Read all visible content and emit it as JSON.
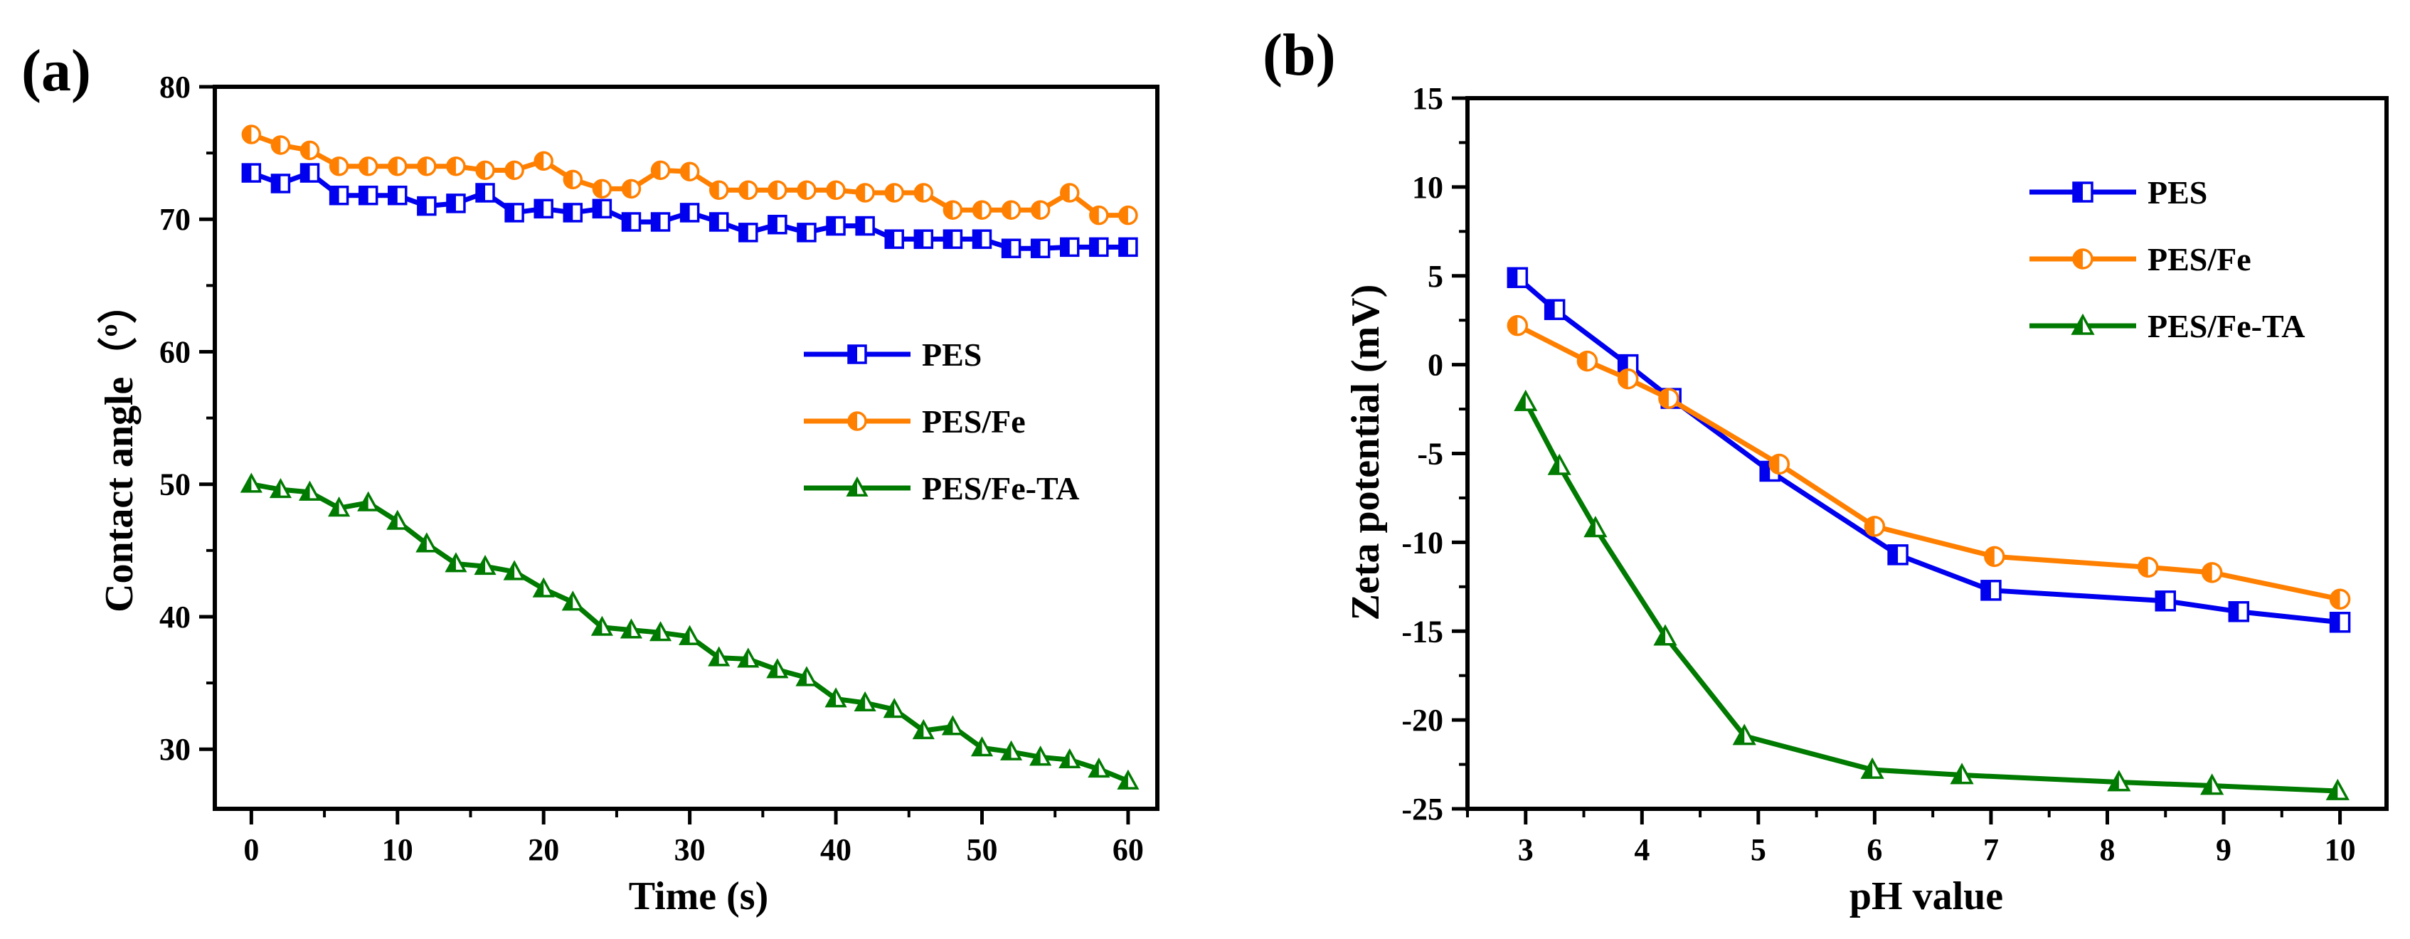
{
  "colors": {
    "PES": "#0000ee",
    "PES/Fe": "#ff8000",
    "PES/Fe-TA": "#007a00"
  },
  "chart_data": [
    {
      "panel": "(a)",
      "type": "line",
      "xlabel": "Time (s)",
      "ylabel": "Contact angle（º）",
      "xlim": [
        -2.5,
        62
      ],
      "ylim": [
        25.5,
        80
      ],
      "xticks": [
        "0",
        "10",
        "20",
        "30",
        "40",
        "50",
        "60"
      ],
      "yticks": [
        "30",
        "40",
        "50",
        "60",
        "70",
        "80"
      ],
      "legend_position": "center-right",
      "series": [
        {
          "name": "PES",
          "marker": "square",
          "x": [
            0,
            2,
            4,
            6,
            8,
            10,
            12,
            14,
            16,
            18,
            20,
            22,
            24,
            26,
            28,
            30,
            32,
            34,
            36,
            38,
            40,
            42,
            44,
            46,
            48,
            50,
            52,
            54,
            56,
            58,
            60
          ],
          "y": [
            73.5,
            72.7,
            73.5,
            71.8,
            71.8,
            71.8,
            71.0,
            71.2,
            72.0,
            70.5,
            70.8,
            70.5,
            70.8,
            69.8,
            69.8,
            70.5,
            69.8,
            69.0,
            69.6,
            69.0,
            69.5,
            69.5,
            68.5,
            68.5,
            68.5,
            68.5,
            67.8,
            67.8,
            67.9,
            67.9,
            67.9
          ]
        },
        {
          "name": "PES/Fe",
          "marker": "circle",
          "x": [
            0,
            2,
            4,
            6,
            8,
            10,
            12,
            14,
            16,
            18,
            20,
            22,
            24,
            26,
            28,
            30,
            32,
            34,
            36,
            38,
            40,
            42,
            44,
            46,
            48,
            50,
            52,
            54,
            56,
            58,
            60
          ],
          "y": [
            76.4,
            75.6,
            75.2,
            74.0,
            74.0,
            74.0,
            74.0,
            74.0,
            73.7,
            73.7,
            74.4,
            73.0,
            72.3,
            72.3,
            73.7,
            73.6,
            72.2,
            72.2,
            72.2,
            72.2,
            72.2,
            72.0,
            72.0,
            72.0,
            70.7,
            70.7,
            70.7,
            70.7,
            72.0,
            70.3,
            70.3
          ]
        },
        {
          "name": "PES/Fe-TA",
          "marker": "triangle",
          "x": [
            0,
            2,
            4,
            6,
            8,
            10,
            12,
            14,
            16,
            18,
            20,
            22,
            24,
            26,
            28,
            30,
            32,
            34,
            36,
            38,
            40,
            42,
            44,
            46,
            48,
            50,
            52,
            54,
            56,
            58,
            60
          ],
          "y": [
            50.0,
            49.6,
            49.4,
            48.2,
            48.6,
            47.2,
            45.5,
            44.0,
            43.8,
            43.4,
            42.1,
            41.1,
            39.2,
            39.0,
            38.8,
            38.5,
            36.9,
            36.8,
            36.0,
            35.4,
            33.8,
            33.5,
            33.0,
            31.4,
            31.7,
            30.1,
            29.8,
            29.4,
            29.2,
            28.5,
            27.6
          ]
        }
      ]
    },
    {
      "panel": "(b)",
      "type": "line",
      "xlabel": "pH value",
      "ylabel": "Zeta potential (mV)",
      "xlim": [
        2.5,
        10.4
      ],
      "ylim": [
        -25,
        15
      ],
      "xticks": [
        "3",
        "4",
        "5",
        "6",
        "7",
        "8",
        "9",
        "10"
      ],
      "yticks": [
        "-25",
        "-20",
        "-15",
        "-10",
        "-5",
        "0",
        "5",
        "10",
        "15"
      ],
      "legend_position": "top-right",
      "series": [
        {
          "name": "PES",
          "marker": "square",
          "x": [
            2.93,
            3.25,
            3.88,
            4.25,
            5.1,
            6.2,
            7.0,
            8.5,
            9.13,
            10.0
          ],
          "y": [
            4.9,
            3.1,
            0.0,
            -1.9,
            -6.0,
            -10.7,
            -12.7,
            -13.3,
            -13.9,
            -14.5
          ]
        },
        {
          "name": "PES/Fe",
          "marker": "circle",
          "x": [
            2.93,
            3.53,
            3.88,
            4.23,
            5.18,
            6.0,
            7.03,
            8.35,
            8.9,
            10.0
          ],
          "y": [
            2.2,
            0.2,
            -0.8,
            -1.9,
            -5.6,
            -9.1,
            -10.8,
            -11.4,
            -11.7,
            -13.2
          ]
        },
        {
          "name": "PES/Fe-TA",
          "marker": "triangle",
          "x": [
            3.0,
            3.29,
            3.6,
            4.2,
            4.88,
            5.98,
            6.75,
            8.1,
            8.9,
            9.98
          ],
          "y": [
            -2.1,
            -5.7,
            -9.2,
            -15.3,
            -20.9,
            -22.8,
            -23.1,
            -23.5,
            -23.7,
            -24.0
          ]
        }
      ]
    }
  ]
}
